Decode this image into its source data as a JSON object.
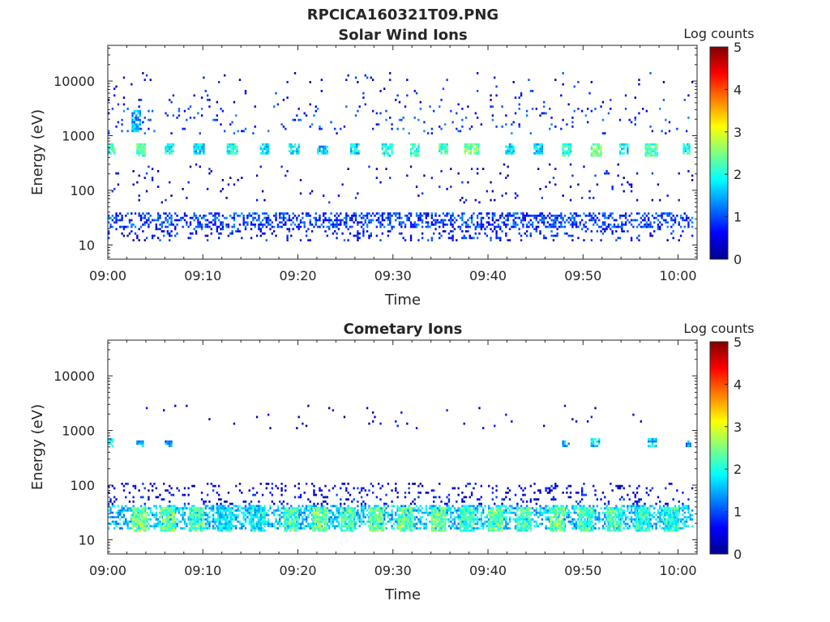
{
  "figure_title": "RPCICA160321T09.PNG",
  "chart_data": [
    {
      "type": "heatmap",
      "title": "Solar Wind Ions",
      "xlabel": "Time",
      "ylabel": "Energy (eV)",
      "x_ticks": [
        "09:00",
        "09:10",
        "09:20",
        "09:30",
        "09:40",
        "09:50",
        "10:00"
      ],
      "x_range_minutes": [
        0,
        62
      ],
      "y_scale": "log",
      "y_range": [
        5.5,
        45000
      ],
      "y_ticks": [
        10,
        100,
        1000,
        10000
      ],
      "y_tick_labels": [
        "10",
        "100",
        "1000",
        "10000"
      ],
      "colorbar": {
        "label": "Log counts",
        "range": [
          0,
          5
        ],
        "ticks": [
          "0",
          "1",
          "2",
          "3",
          "4",
          "5"
        ],
        "colormap": "jet"
      },
      "clusters": [
        {
          "t_min": 0.0,
          "t_max": 0.8,
          "e_min": 450,
          "e_max": 750,
          "level": 2.0
        },
        {
          "t_min": 2.5,
          "t_max": 3.5,
          "e_min": 1200,
          "e_max": 3000,
          "level": 1.5
        },
        {
          "t_min": 3.0,
          "t_max": 4.0,
          "e_min": 420,
          "e_max": 700,
          "level": 2.3
        },
        {
          "t_min": 6.0,
          "t_max": 7.0,
          "e_min": 450,
          "e_max": 700,
          "level": 2.0
        },
        {
          "t_min": 9.0,
          "t_max": 10.0,
          "e_min": 450,
          "e_max": 700,
          "level": 1.7
        },
        {
          "t_min": 12.5,
          "t_max": 13.5,
          "e_min": 450,
          "e_max": 700,
          "level": 2.0
        },
        {
          "t_min": 16.0,
          "t_max": 16.8,
          "e_min": 450,
          "e_max": 700,
          "level": 1.7
        },
        {
          "t_min": 19.0,
          "t_max": 20.0,
          "e_min": 450,
          "e_max": 750,
          "level": 1.8
        },
        {
          "t_min": 22.0,
          "t_max": 23.0,
          "e_min": 450,
          "e_max": 650,
          "level": 1.6
        },
        {
          "t_min": 25.5,
          "t_max": 26.3,
          "e_min": 450,
          "e_max": 700,
          "level": 1.7
        },
        {
          "t_min": 28.8,
          "t_max": 29.8,
          "e_min": 420,
          "e_max": 700,
          "level": 2.0
        },
        {
          "t_min": 31.8,
          "t_max": 32.8,
          "e_min": 420,
          "e_max": 750,
          "level": 2.2
        },
        {
          "t_min": 34.8,
          "t_max": 35.8,
          "e_min": 450,
          "e_max": 750,
          "level": 2.2
        },
        {
          "t_min": 37.5,
          "t_max": 39.0,
          "e_min": 450,
          "e_max": 750,
          "level": 2.4
        },
        {
          "t_min": 41.8,
          "t_max": 42.8,
          "e_min": 450,
          "e_max": 700,
          "level": 1.8
        },
        {
          "t_min": 44.8,
          "t_max": 45.8,
          "e_min": 450,
          "e_max": 700,
          "level": 1.7
        },
        {
          "t_min": 47.8,
          "t_max": 48.8,
          "e_min": 420,
          "e_max": 750,
          "level": 2.1
        },
        {
          "t_min": 50.8,
          "t_max": 52.0,
          "e_min": 420,
          "e_max": 750,
          "level": 2.4
        },
        {
          "t_min": 53.8,
          "t_max": 54.8,
          "e_min": 450,
          "e_max": 700,
          "level": 1.8
        },
        {
          "t_min": 56.5,
          "t_max": 57.8,
          "e_min": 420,
          "e_max": 750,
          "level": 2.3
        },
        {
          "t_min": 60.5,
          "t_max": 61.3,
          "e_min": 450,
          "e_max": 700,
          "level": 2.0
        },
        {
          "t_min": 0.0,
          "t_max": 61.5,
          "e_min": 20,
          "e_max": 38,
          "level": 0.9,
          "density": 0.45
        },
        {
          "t_min": 0.0,
          "t_max": 61.5,
          "e_min": 12,
          "e_max": 20,
          "level": 0.7,
          "density": 0.15
        },
        {
          "t_min": 0.0,
          "t_max": 61.5,
          "e_min": 1100,
          "e_max": 3500,
          "level": 0.9,
          "density": 0.06
        },
        {
          "t_min": 0.0,
          "t_max": 61.5,
          "e_min": 3500,
          "e_max": 15000,
          "level": 0.6,
          "density": 0.02
        },
        {
          "t_min": 0.0,
          "t_max": 61.5,
          "e_min": 60,
          "e_max": 300,
          "level": 0.5,
          "density": 0.03
        }
      ]
    },
    {
      "type": "heatmap",
      "title": "Cometary Ions",
      "xlabel": "Time",
      "ylabel": "Energy (eV)",
      "x_ticks": [
        "09:00",
        "09:10",
        "09:20",
        "09:30",
        "09:40",
        "09:50",
        "10:00"
      ],
      "x_range_minutes": [
        0,
        62
      ],
      "y_scale": "log",
      "y_range": [
        5.5,
        45000
      ],
      "y_ticks": [
        10,
        100,
        1000,
        10000
      ],
      "y_tick_labels": [
        "10",
        "100",
        "1000",
        "10000"
      ],
      "colorbar": {
        "label": "Log counts",
        "range": [
          0,
          5
        ],
        "ticks": [
          "0",
          "1",
          "2",
          "3",
          "4",
          "5"
        ],
        "colormap": "jet"
      },
      "clusters": [
        {
          "t_min": 0.0,
          "t_max": 0.6,
          "e_min": 520,
          "e_max": 720,
          "level": 1.7
        },
        {
          "t_min": 3.0,
          "t_max": 3.8,
          "e_min": 520,
          "e_max": 680,
          "level": 1.5
        },
        {
          "t_min": 6.0,
          "t_max": 6.8,
          "e_min": 520,
          "e_max": 680,
          "level": 1.3
        },
        {
          "t_min": 47.8,
          "t_max": 48.6,
          "e_min": 520,
          "e_max": 680,
          "level": 1.3
        },
        {
          "t_min": 50.8,
          "t_max": 51.8,
          "e_min": 520,
          "e_max": 700,
          "level": 1.6
        },
        {
          "t_min": 56.8,
          "t_max": 57.8,
          "e_min": 520,
          "e_max": 700,
          "level": 1.6
        },
        {
          "t_min": 60.8,
          "t_max": 61.4,
          "e_min": 520,
          "e_max": 680,
          "level": 1.4
        },
        {
          "t_min": 0.0,
          "t_max": 61.5,
          "e_min": 15,
          "e_max": 42,
          "level": 1.6,
          "density": 0.5
        },
        {
          "t_min": 2.5,
          "t_max": 4.0,
          "e_min": 14,
          "e_max": 40,
          "level": 2.4
        },
        {
          "t_min": 5.5,
          "t_max": 7.0,
          "e_min": 14,
          "e_max": 40,
          "level": 2.4
        },
        {
          "t_min": 8.5,
          "t_max": 10.0,
          "e_min": 14,
          "e_max": 40,
          "level": 2.2
        },
        {
          "t_min": 11.5,
          "t_max": 13.0,
          "e_min": 14,
          "e_max": 40,
          "level": 1.8
        },
        {
          "t_min": 15.0,
          "t_max": 16.5,
          "e_min": 14,
          "e_max": 40,
          "level": 1.8
        },
        {
          "t_min": 18.5,
          "t_max": 20.0,
          "e_min": 14,
          "e_max": 40,
          "level": 2.2
        },
        {
          "t_min": 21.5,
          "t_max": 23.0,
          "e_min": 14,
          "e_max": 40,
          "level": 2.4
        },
        {
          "t_min": 24.5,
          "t_max": 26.0,
          "e_min": 14,
          "e_max": 40,
          "level": 2.2
        },
        {
          "t_min": 27.5,
          "t_max": 29.0,
          "e_min": 14,
          "e_max": 40,
          "level": 2.4
        },
        {
          "t_min": 30.5,
          "t_max": 32.0,
          "e_min": 14,
          "e_max": 40,
          "level": 2.3
        },
        {
          "t_min": 34.0,
          "t_max": 35.5,
          "e_min": 14,
          "e_max": 40,
          "level": 2.4
        },
        {
          "t_min": 37.0,
          "t_max": 38.5,
          "e_min": 14,
          "e_max": 40,
          "level": 2.2
        },
        {
          "t_min": 40.0,
          "t_max": 41.5,
          "e_min": 14,
          "e_max": 40,
          "level": 2.3
        },
        {
          "t_min": 43.0,
          "t_max": 44.5,
          "e_min": 14,
          "e_max": 40,
          "level": 2.2
        },
        {
          "t_min": 46.5,
          "t_max": 48.0,
          "e_min": 14,
          "e_max": 40,
          "level": 2.4
        },
        {
          "t_min": 49.5,
          "t_max": 51.0,
          "e_min": 14,
          "e_max": 40,
          "level": 2.2
        },
        {
          "t_min": 52.5,
          "t_max": 54.0,
          "e_min": 14,
          "e_max": 40,
          "level": 2.2
        },
        {
          "t_min": 55.5,
          "t_max": 57.0,
          "e_min": 14,
          "e_max": 40,
          "level": 2.1
        },
        {
          "t_min": 58.5,
          "t_max": 60.0,
          "e_min": 14,
          "e_max": 40,
          "level": 2.0
        },
        {
          "t_min": 0.0,
          "t_max": 61.5,
          "e_min": 45,
          "e_max": 110,
          "level": 0.5,
          "density": 0.13
        },
        {
          "t_min": 0.0,
          "t_max": 61.5,
          "e_min": 1100,
          "e_max": 3000,
          "level": 0.4,
          "density": 0.012
        }
      ]
    }
  ]
}
